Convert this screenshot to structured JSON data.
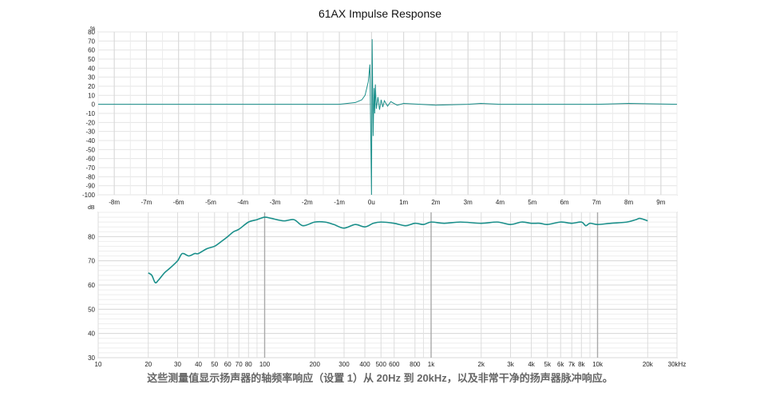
{
  "chart_data": [
    {
      "type": "line",
      "title": "61AX Impulse Response",
      "y_unit": "%",
      "ylim": [
        -100,
        80
      ],
      "xlim_ms": [
        -8.5,
        9.5
      ],
      "y_ticks": [
        "80",
        "70",
        "60",
        "50",
        "40",
        "30",
        "20",
        "10",
        "0",
        "-10",
        "-20",
        "-30",
        "-40",
        "-50",
        "-60",
        "-70",
        "-80",
        "-90",
        "-100"
      ],
      "x_ticks": [
        "-8m",
        "-7m",
        "-6m",
        "-5m",
        "-4m",
        "-3m",
        "-2m",
        "-1m",
        "0u",
        "1m",
        "2m",
        "3m",
        "4m",
        "5m",
        "6m",
        "7m",
        "8m",
        "9m"
      ],
      "grid": true,
      "series": [
        {
          "color": "#1a8f8a",
          "x": [
            -8.5,
            -3.0,
            -1.0,
            -0.5,
            -0.3,
            -0.2,
            -0.1,
            -0.05,
            0.0,
            0.02,
            0.05,
            0.08,
            0.1,
            0.12,
            0.15,
            0.2,
            0.25,
            0.3,
            0.35,
            0.4,
            0.5,
            0.6,
            0.8,
            1.0,
            1.5,
            2.0,
            3.0,
            3.4,
            4.0,
            5.0,
            6.0,
            7.0,
            8.0,
            9.5
          ],
          "y": [
            0,
            0,
            0,
            2,
            5,
            10,
            25,
            44,
            -100,
            72,
            -35,
            18,
            -10,
            22,
            -5,
            8,
            -6,
            5,
            -3,
            4,
            -2,
            3,
            -1,
            1,
            0,
            -1,
            0,
            1,
            0,
            0,
            0,
            0,
            1,
            0
          ]
        }
      ]
    },
    {
      "type": "line",
      "y_unit": "dB",
      "ylim": [
        30,
        90
      ],
      "x_scale": "log",
      "xlim": [
        10,
        30000
      ],
      "y_ticks": [
        "80",
        "70",
        "60",
        "50",
        "40",
        "30"
      ],
      "x_ticks": [
        "10",
        "20",
        "30",
        "40",
        "50",
        "60",
        "70",
        "80",
        "100",
        "200",
        "300",
        "400",
        "500",
        "600",
        "800",
        "1k",
        "2k",
        "3k",
        "4k",
        "5k",
        "6k",
        "7k",
        "8k",
        "10k",
        "20k",
        "30kHz"
      ],
      "grid": true,
      "series": [
        {
          "color": "#1a8f8a",
          "x": [
            20,
            21,
            22,
            23,
            25,
            27,
            30,
            32,
            35,
            38,
            40,
            45,
            50,
            55,
            60,
            65,
            70,
            80,
            90,
            100,
            110,
            130,
            150,
            170,
            200,
            230,
            260,
            300,
            350,
            400,
            450,
            500,
            600,
            700,
            800,
            900,
            1000,
            1200,
            1500,
            2000,
            2500,
            3000,
            3500,
            4000,
            4500,
            5000,
            6000,
            7000,
            8000,
            8500,
            9000,
            10000,
            12000,
            15000,
            17000,
            18000,
            20000
          ],
          "y": [
            65,
            64,
            61,
            62,
            65,
            67,
            70,
            73,
            72,
            73,
            73,
            75,
            76,
            78,
            80,
            82,
            83,
            86,
            87,
            88,
            87.5,
            86.5,
            87,
            84.5,
            86,
            86,
            85,
            83.5,
            85,
            84,
            85.5,
            86,
            85.5,
            84.5,
            85.5,
            85,
            86,
            85.5,
            86,
            85.5,
            86,
            85,
            86,
            85.5,
            85.5,
            85,
            86,
            85.5,
            86,
            84.5,
            85.5,
            85,
            85.5,
            86,
            87,
            87.5,
            86.5
          ]
        }
      ]
    }
  ],
  "caption": "这些测量值显示扬声器的轴频率响应（设置 1）从 20Hz 到 20kHz，以及非常干净的扬声器脉冲响应。"
}
